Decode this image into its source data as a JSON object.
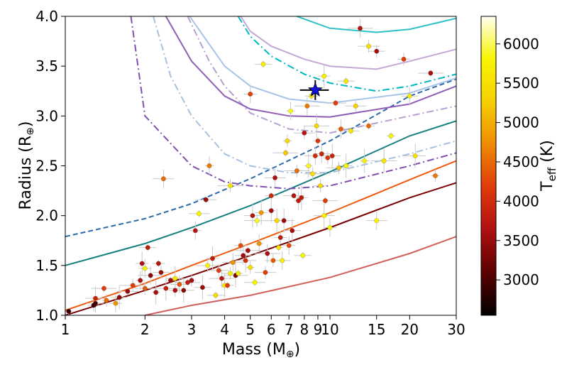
{
  "chart_data": {
    "type": "scatter",
    "xlabel": "Mass (M",
    "xlabel_sub": "⊕",
    "xlabel_close": ")",
    "ylabel": "Radius (R",
    "ylabel_sub": "⊕",
    "ylabel_close": ")",
    "xscale": "log",
    "xlim": [
      1,
      30
    ],
    "ylim": [
      1.0,
      4.0
    ],
    "x_ticks": [
      1,
      2,
      3,
      4,
      5,
      6,
      7,
      8,
      9,
      10,
      15,
      20,
      30
    ],
    "x_tick_labels": [
      "1",
      "2",
      "3",
      "4",
      "5",
      "6",
      "7",
      "8",
      "9",
      "10",
      "15",
      "20",
      "30"
    ],
    "y_ticks": [
      1.0,
      1.5,
      2.0,
      2.5,
      3.0,
      3.5,
      4.0
    ],
    "y_tick_labels": [
      "1.0",
      "1.5",
      "2.0",
      "2.5",
      "3.0",
      "3.5",
      "4.0"
    ],
    "colorbar": {
      "label": "T",
      "label_sub": "eff",
      "label_close": " (K)",
      "range": [
        2550,
        6350
      ],
      "ticks": [
        3000,
        3500,
        4000,
        4500,
        5000,
        5500,
        6000
      ],
      "tick_labels": [
        "3000",
        "3500",
        "4000",
        "4500",
        "5000",
        "5500",
        "6000"
      ],
      "colormap": "hot",
      "stops": [
        "#000000",
        "#5a0000",
        "#b01010",
        "#e03a0a",
        "#f08a00",
        "#f5d000",
        "#f8f400",
        "#fffff2"
      ]
    },
    "highlight": {
      "x": 8.8,
      "y": 3.26,
      "xerr": 1.1,
      "yerr": 0.1,
      "marker": "star",
      "color": "#1010e0"
    },
    "curves": [
      {
        "color": "#d0605a",
        "style": "solid",
        "points": [
          [
            2,
            1.0
          ],
          [
            3,
            1.1
          ],
          [
            5,
            1.2
          ],
          [
            10,
            1.38
          ],
          [
            20,
            1.62
          ],
          [
            30,
            1.79
          ]
        ]
      },
      {
        "color": "#7a0000",
        "style": "solid",
        "points": [
          [
            1,
            1.0
          ],
          [
            2,
            1.25
          ],
          [
            3,
            1.4
          ],
          [
            5,
            1.6
          ],
          [
            10,
            1.88
          ],
          [
            20,
            2.18
          ],
          [
            30,
            2.33
          ]
        ]
      },
      {
        "color": "#ee5a0c",
        "style": "solid",
        "points": [
          [
            1,
            1.05
          ],
          [
            2,
            1.32
          ],
          [
            3,
            1.5
          ],
          [
            5,
            1.72
          ],
          [
            10,
            2.03
          ],
          [
            20,
            2.36
          ],
          [
            30,
            2.55
          ]
        ]
      },
      {
        "color": "#168080",
        "style": "solid",
        "points": [
          [
            1,
            1.5
          ],
          [
            2,
            1.72
          ],
          [
            3,
            1.88
          ],
          [
            5,
            2.1
          ],
          [
            10,
            2.44
          ],
          [
            20,
            2.8
          ],
          [
            30,
            2.95
          ]
        ]
      },
      {
        "color": "#2c6aa8",
        "style": "dashed",
        "points": [
          [
            1,
            1.79
          ],
          [
            2,
            1.97
          ],
          [
            3,
            2.12
          ],
          [
            5,
            2.37
          ],
          [
            10,
            2.75
          ],
          [
            20,
            3.2
          ],
          [
            30,
            3.37
          ]
        ]
      },
      {
        "color": "#8050b0",
        "style": "dashdot",
        "points": [
          [
            1.77,
            4.0
          ],
          [
            2,
            3.0
          ],
          [
            3,
            2.5
          ],
          [
            4,
            2.34
          ],
          [
            5,
            2.3
          ],
          [
            7,
            2.27
          ],
          [
            10,
            2.3
          ],
          [
            20,
            2.5
          ],
          [
            30,
            2.63
          ]
        ]
      },
      {
        "color": "#a8c0e0",
        "style": "dashdot",
        "points": [
          [
            2.15,
            4.0
          ],
          [
            2.5,
            3.4
          ],
          [
            3,
            3.0
          ],
          [
            4,
            2.62
          ],
          [
            5,
            2.5
          ],
          [
            7,
            2.43
          ],
          [
            10,
            2.43
          ],
          [
            20,
            2.62
          ],
          [
            30,
            2.75
          ]
        ]
      },
      {
        "color": "#b8a0d0",
        "style": "dashdot",
        "points": [
          [
            2.9,
            4.0
          ],
          [
            3.5,
            3.55
          ],
          [
            4,
            3.3
          ],
          [
            5,
            3.03
          ],
          [
            7,
            2.87
          ],
          [
            10,
            2.83
          ],
          [
            20,
            3.0
          ],
          [
            30,
            3.1
          ]
        ]
      },
      {
        "color": "#00b8c0",
        "style": "dashdot",
        "points": [
          [
            4.5,
            4.0
          ],
          [
            5,
            3.8
          ],
          [
            6,
            3.6
          ],
          [
            8,
            3.42
          ],
          [
            10,
            3.33
          ],
          [
            15,
            3.25
          ],
          [
            20,
            3.3
          ],
          [
            30,
            3.42
          ]
        ]
      },
      {
        "color": "#8f5db5",
        "style": "solid",
        "points": [
          [
            2.4,
            4.0
          ],
          [
            3,
            3.55
          ],
          [
            4,
            3.2
          ],
          [
            5,
            3.07
          ],
          [
            7,
            3.0
          ],
          [
            10,
            2.99
          ],
          [
            20,
            3.12
          ],
          [
            30,
            3.3
          ]
        ]
      },
      {
        "color": "#a8c4e8",
        "style": "solid",
        "points": [
          [
            2.95,
            4.0
          ],
          [
            4,
            3.5
          ],
          [
            5,
            3.3
          ],
          [
            7,
            3.17
          ],
          [
            10,
            3.13
          ],
          [
            20,
            3.23
          ],
          [
            30,
            3.38
          ]
        ]
      },
      {
        "color": "#c4a8d8",
        "style": "solid",
        "points": [
          [
            4.6,
            4.0
          ],
          [
            5,
            3.85
          ],
          [
            6,
            3.7
          ],
          [
            8,
            3.57
          ],
          [
            10,
            3.5
          ],
          [
            15,
            3.47
          ],
          [
            20,
            3.55
          ],
          [
            30,
            3.67
          ]
        ]
      },
      {
        "color": "#30c0c8",
        "style": "solid",
        "points": [
          [
            7.5,
            4.0
          ],
          [
            10,
            3.88
          ],
          [
            15,
            3.84
          ],
          [
            20,
            3.87
          ],
          [
            30,
            3.98
          ]
        ]
      }
    ],
    "points": [
      {
        "x": 1.03,
        "y": 1.04,
        "t": 2900
      },
      {
        "x": 1.28,
        "y": 1.1,
        "t": 2950
      },
      {
        "x": 1.3,
        "y": 1.12,
        "t": 3000
      },
      {
        "x": 1.3,
        "y": 1.17,
        "t": 3900
      },
      {
        "x": 1.4,
        "y": 1.27,
        "t": 4200
      },
      {
        "x": 1.43,
        "y": 1.15,
        "t": 4500
      },
      {
        "x": 1.55,
        "y": 1.12,
        "t": 4800
      },
      {
        "x": 1.6,
        "y": 1.18,
        "t": 3400
      },
      {
        "x": 1.72,
        "y": 1.24,
        "t": 3500
      },
      {
        "x": 1.8,
        "y": 1.3,
        "t": 4200
      },
      {
        "x": 1.92,
        "y": 1.35,
        "t": 3600
      },
      {
        "x": 1.95,
        "y": 1.52,
        "t": 3600
      },
      {
        "x": 2.05,
        "y": 1.68,
        "t": 3800
      },
      {
        "x": 2.0,
        "y": 1.27,
        "t": 4400
      },
      {
        "x": 2.1,
        "y": 1.4,
        "t": 3400
      },
      {
        "x": 2.2,
        "y": 1.23,
        "t": 3600
      },
      {
        "x": 2.25,
        "y": 1.52,
        "t": 3700
      },
      {
        "x": 2.3,
        "y": 1.43,
        "t": 3500
      },
      {
        "x": 2.35,
        "y": 2.37,
        "t": 4500
      },
      {
        "x": 2.4,
        "y": 1.27,
        "t": 3900
      },
      {
        "x": 2.5,
        "y": 1.35,
        "t": 3500
      },
      {
        "x": 2.6,
        "y": 1.25,
        "t": 3600
      },
      {
        "x": 2.7,
        "y": 1.31,
        "t": 4400
      },
      {
        "x": 2.8,
        "y": 1.25,
        "t": 3400
      },
      {
        "x": 2.9,
        "y": 1.33,
        "t": 3800
      },
      {
        "x": 3.0,
        "y": 1.35,
        "t": 3600
      },
      {
        "x": 3.1,
        "y": 1.85,
        "t": 3700
      },
      {
        "x": 3.3,
        "y": 1.28,
        "t": 3500
      },
      {
        "x": 3.4,
        "y": 2.16,
        "t": 3500
      },
      {
        "x": 3.45,
        "y": 1.5,
        "t": 5800
      },
      {
        "x": 3.5,
        "y": 2.5,
        "t": 4600
      },
      {
        "x": 3.6,
        "y": 1.57,
        "t": 3800
      },
      {
        "x": 3.7,
        "y": 1.2,
        "t": 5400
      },
      {
        "x": 3.8,
        "y": 1.45,
        "t": 4200
      },
      {
        "x": 3.9,
        "y": 1.37,
        "t": 3700
      },
      {
        "x": 4.0,
        "y": 1.3,
        "t": 5600
      },
      {
        "x": 4.1,
        "y": 1.3,
        "t": 4200
      },
      {
        "x": 4.2,
        "y": 1.42,
        "t": 5700
      },
      {
        "x": 4.3,
        "y": 1.53,
        "t": 4800
      },
      {
        "x": 4.4,
        "y": 1.4,
        "t": 3300
      },
      {
        "x": 4.5,
        "y": 1.42,
        "t": 5700
      },
      {
        "x": 4.6,
        "y": 1.7,
        "t": 4300
      },
      {
        "x": 4.7,
        "y": 1.6,
        "t": 3500
      },
      {
        "x": 4.8,
        "y": 1.55,
        "t": 4000
      },
      {
        "x": 4.9,
        "y": 1.65,
        "t": 3600
      },
      {
        "x": 5.0,
        "y": 1.48,
        "t": 5500
      },
      {
        "x": 5.0,
        "y": 3.22,
        "t": 4200
      },
      {
        "x": 5.1,
        "y": 2.0,
        "t": 3700
      },
      {
        "x": 5.2,
        "y": 1.33,
        "t": 5800
      },
      {
        "x": 5.3,
        "y": 1.95,
        "t": 5900
      },
      {
        "x": 5.4,
        "y": 1.72,
        "t": 4800
      },
      {
        "x": 5.5,
        "y": 2.03,
        "t": 4800
      },
      {
        "x": 5.6,
        "y": 3.52,
        "t": 5700
      },
      {
        "x": 5.7,
        "y": 1.43,
        "t": 4200
      },
      {
        "x": 5.8,
        "y": 1.62,
        "t": 3600
      },
      {
        "x": 6.0,
        "y": 2.05,
        "t": 3600
      },
      {
        "x": 6.0,
        "y": 2.2,
        "t": 4000
      },
      {
        "x": 6.1,
        "y": 1.55,
        "t": 4400
      },
      {
        "x": 6.2,
        "y": 2.38,
        "t": 3600
      },
      {
        "x": 6.3,
        "y": 1.95,
        "t": 5400
      },
      {
        "x": 6.4,
        "y": 1.68,
        "t": 5500
      },
      {
        "x": 6.5,
        "y": 1.78,
        "t": 3800
      },
      {
        "x": 6.6,
        "y": 1.55,
        "t": 5700
      },
      {
        "x": 6.7,
        "y": 1.95,
        "t": 3500
      },
      {
        "x": 6.8,
        "y": 2.63,
        "t": 5200
      },
      {
        "x": 6.9,
        "y": 2.75,
        "t": 5400
      },
      {
        "x": 7.0,
        "y": 1.7,
        "t": 4300
      },
      {
        "x": 7.2,
        "y": 1.85,
        "t": 3600
      },
      {
        "x": 7.3,
        "y": 2.2,
        "t": 3700
      },
      {
        "x": 7.5,
        "y": 2.45,
        "t": 4500
      },
      {
        "x": 7.6,
        "y": 2.15,
        "t": 3800
      },
      {
        "x": 7.8,
        "y": 2.18,
        "t": 3800
      },
      {
        "x": 7.9,
        "y": 1.6,
        "t": 5800
      },
      {
        "x": 8.0,
        "y": 2.83,
        "t": 3700
      },
      {
        "x": 8.2,
        "y": 3.1,
        "t": 4600
      },
      {
        "x": 8.3,
        "y": 2.5,
        "t": 5900
      },
      {
        "x": 8.5,
        "y": 3.2,
        "t": 5600
      },
      {
        "x": 8.6,
        "y": 2.42,
        "t": 5500
      },
      {
        "x": 8.8,
        "y": 2.6,
        "t": 4000
      },
      {
        "x": 8.9,
        "y": 2.9,
        "t": 5400
      },
      {
        "x": 9.0,
        "y": 2.75,
        "t": 4100
      },
      {
        "x": 9.2,
        "y": 2.3,
        "t": 5400
      },
      {
        "x": 9.3,
        "y": 2.62,
        "t": 3900
      },
      {
        "x": 9.5,
        "y": 2.0,
        "t": 5800
      },
      {
        "x": 9.6,
        "y": 2.15,
        "t": 4200
      },
      {
        "x": 9.8,
        "y": 2.58,
        "t": 4100
      },
      {
        "x": 10.0,
        "y": 1.88,
        "t": 5800
      },
      {
        "x": 10.2,
        "y": 2.6,
        "t": 3900
      },
      {
        "x": 10.5,
        "y": 3.13,
        "t": 4200
      },
      {
        "x": 10.8,
        "y": 2.48,
        "t": 5200
      },
      {
        "x": 11.0,
        "y": 2.87,
        "t": 4400
      },
      {
        "x": 11.5,
        "y": 2.5,
        "t": 5800
      },
      {
        "x": 12.0,
        "y": 2.85,
        "t": 5600
      },
      {
        "x": 12.5,
        "y": 3.1,
        "t": 5300
      },
      {
        "x": 13.0,
        "y": 3.88,
        "t": 3700
      },
      {
        "x": 13.5,
        "y": 2.55,
        "t": 5800
      },
      {
        "x": 14.0,
        "y": 2.9,
        "t": 4500
      },
      {
        "x": 15.0,
        "y": 3.65,
        "t": 3600
      },
      {
        "x": 15.0,
        "y": 1.95,
        "t": 5800
      },
      {
        "x": 16.0,
        "y": 2.55,
        "t": 5600
      },
      {
        "x": 17.0,
        "y": 2.8,
        "t": 5800
      },
      {
        "x": 19.0,
        "y": 3.57,
        "t": 4200
      },
      {
        "x": 20.0,
        "y": 3.2,
        "t": 5700
      },
      {
        "x": 21.0,
        "y": 2.6,
        "t": 5500
      },
      {
        "x": 24.0,
        "y": 3.43,
        "t": 3600
      },
      {
        "x": 25.0,
        "y": 2.4,
        "t": 4600
      },
      {
        "x": 2.0,
        "y": 1.47,
        "t": 5700
      },
      {
        "x": 2.6,
        "y": 1.37,
        "t": 5600
      },
      {
        "x": 3.2,
        "y": 2.02,
        "t": 5800
      },
      {
        "x": 4.2,
        "y": 2.3,
        "t": 5600
      },
      {
        "x": 7.1,
        "y": 3.05,
        "t": 5900
      },
      {
        "x": 9.5,
        "y": 3.4,
        "t": 5700
      },
      {
        "x": 11.5,
        "y": 3.35,
        "t": 5600
      },
      {
        "x": 14.0,
        "y": 3.7,
        "t": 5500
      }
    ]
  }
}
